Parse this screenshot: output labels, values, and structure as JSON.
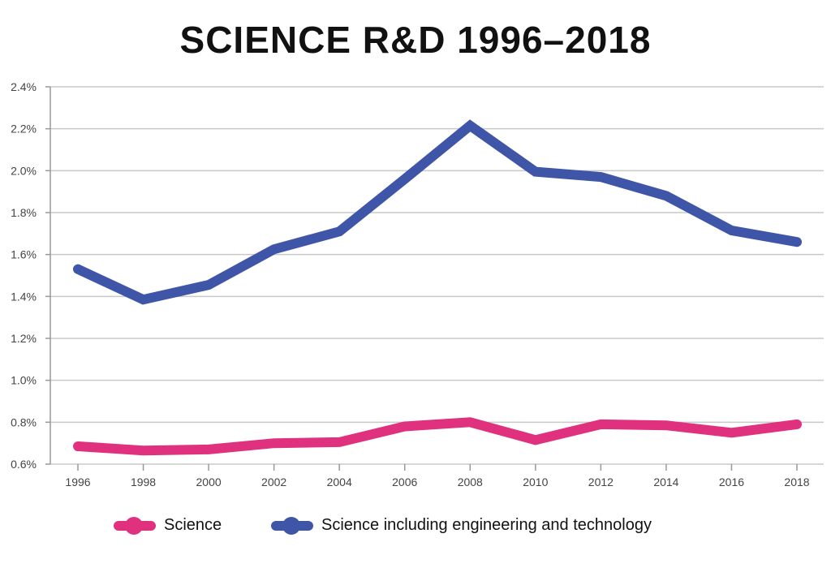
{
  "colors": {
    "science": "#e0317f",
    "science_eng_tech": "#3f56a8"
  },
  "chart_data": {
    "type": "line",
    "title": "SCIENCE R&D 1996–2018",
    "xlabel": "",
    "ylabel": "",
    "x": [
      "1996",
      "1998",
      "2000",
      "2002",
      "2004",
      "2006",
      "2008",
      "2010",
      "2012",
      "2014",
      "2016",
      "2018"
    ],
    "ylim": [
      0.6,
      2.4
    ],
    "yticks": [
      "0.6%",
      "0.8%",
      "1.0%",
      "1.2%",
      "1.4%",
      "1.6%",
      "1.8%",
      "2.0%",
      "2.2%",
      "2.4%"
    ],
    "grid": true,
    "legend_position": "bottom",
    "series": [
      {
        "name": "Science",
        "color": "#e0317f",
        "values": [
          0.685,
          0.665,
          0.67,
          0.7,
          0.705,
          0.78,
          0.8,
          0.715,
          0.79,
          0.785,
          0.75,
          0.79
        ]
      },
      {
        "name": "Science including engineering and technology",
        "color": "#3f56a8",
        "values": [
          1.53,
          1.385,
          1.455,
          1.625,
          1.71,
          1.96,
          2.215,
          1.995,
          1.97,
          1.88,
          1.715,
          1.66
        ]
      }
    ]
  }
}
